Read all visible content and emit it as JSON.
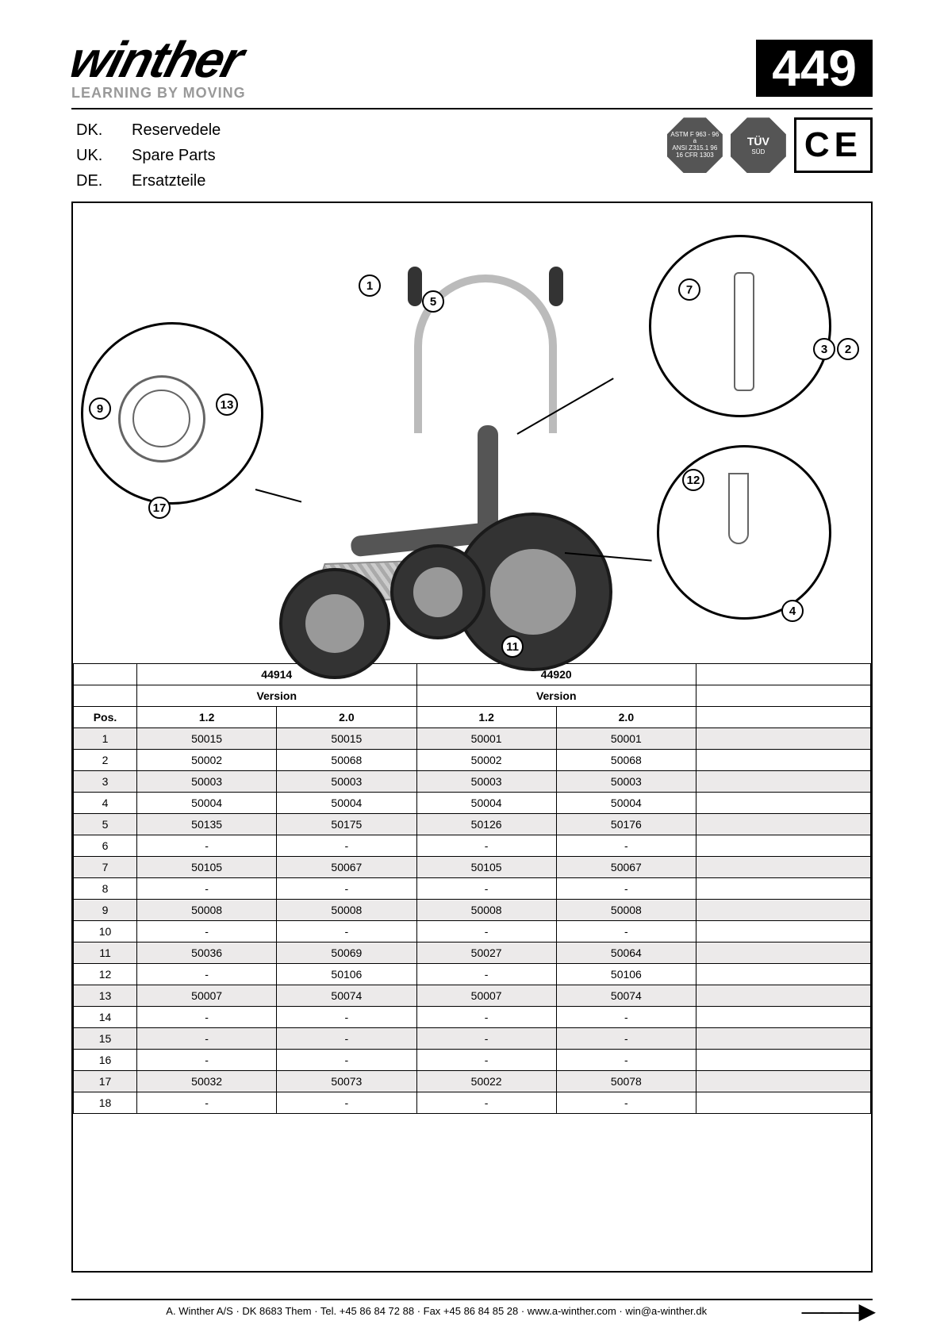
{
  "brand": "winther",
  "tagline": "LEARNING BY MOVING",
  "model_number": "449",
  "languages": [
    {
      "code": "DK.",
      "label": "Reservedele"
    },
    {
      "code": "UK.",
      "label": "Spare Parts"
    },
    {
      "code": "DE.",
      "label": "Ersatzteile"
    }
  ],
  "cert_badges": {
    "astm": {
      "line1": "ASTM F 963 - 96 a",
      "line2": "ANSI Z315.1 96",
      "line3": "16 CFR 1303"
    },
    "tuv": {
      "big": "TÜV",
      "sub": "SÜD"
    },
    "ce": "CE"
  },
  "diagram_callouts": [
    "1",
    "5",
    "7",
    "3",
    "2",
    "9",
    "13",
    "17",
    "12",
    "4",
    "11"
  ],
  "table": {
    "model_headers": [
      "44914",
      "44920"
    ],
    "version_label": "Version",
    "pos_label": "Pos.",
    "version_cols": [
      "1.2",
      "2.0",
      "1.2",
      "2.0"
    ],
    "rows": [
      {
        "pos": "1",
        "cells": [
          "50015",
          "50015",
          "50001",
          "50001"
        ]
      },
      {
        "pos": "2",
        "cells": [
          "50002",
          "50068",
          "50002",
          "50068"
        ]
      },
      {
        "pos": "3",
        "cells": [
          "50003",
          "50003",
          "50003",
          "50003"
        ]
      },
      {
        "pos": "4",
        "cells": [
          "50004",
          "50004",
          "50004",
          "50004"
        ]
      },
      {
        "pos": "5",
        "cells": [
          "50135",
          "50175",
          "50126",
          "50176"
        ]
      },
      {
        "pos": "6",
        "cells": [
          "-",
          "-",
          "-",
          "-"
        ]
      },
      {
        "pos": "7",
        "cells": [
          "50105",
          "50067",
          "50105",
          "50067"
        ]
      },
      {
        "pos": "8",
        "cells": [
          "-",
          "-",
          "-",
          "-"
        ]
      },
      {
        "pos": "9",
        "cells": [
          "50008",
          "50008",
          "50008",
          "50008"
        ]
      },
      {
        "pos": "10",
        "cells": [
          "-",
          "-",
          "-",
          "-"
        ]
      },
      {
        "pos": "11",
        "cells": [
          "50036",
          "50069",
          "50027",
          "50064"
        ]
      },
      {
        "pos": "12",
        "cells": [
          "-",
          "50106",
          "-",
          "50106"
        ]
      },
      {
        "pos": "13",
        "cells": [
          "50007",
          "50074",
          "50007",
          "50074"
        ]
      },
      {
        "pos": "14",
        "cells": [
          "-",
          "-",
          "-",
          "-"
        ]
      },
      {
        "pos": "15",
        "cells": [
          "-",
          "-",
          "-",
          "-"
        ]
      },
      {
        "pos": "16",
        "cells": [
          "-",
          "-",
          "-",
          "-"
        ]
      },
      {
        "pos": "17",
        "cells": [
          "50032",
          "50073",
          "50022",
          "50078"
        ]
      },
      {
        "pos": "18",
        "cells": [
          "-",
          "-",
          "-",
          "-"
        ]
      }
    ]
  },
  "footer": "A. Winther A/S · DK 8683 Them · Tel. +45 86 84 72 88 · Fax +45 86 84 85 28 · www.a-winther.com · win@a-winther.dk",
  "colors": {
    "badge_bg": "#000",
    "text": "#000",
    "shade": "#eceaea",
    "gray": "#999"
  }
}
